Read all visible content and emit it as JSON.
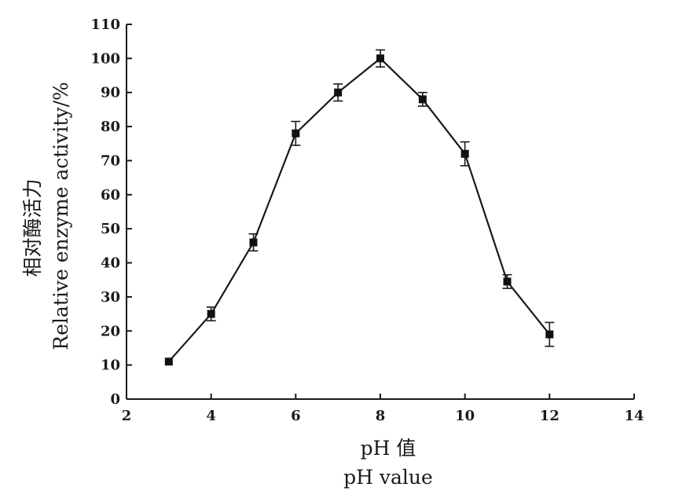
{
  "chart_data": {
    "type": "line",
    "title": "",
    "ylabel_cn": "相对酶活力",
    "ylabel": "Relative  enzyme  activity/%",
    "xlabel_cn": "pH 值",
    "xlabel": "pH  value",
    "xlim": [
      2,
      14
    ],
    "ylim": [
      0,
      110
    ],
    "xticks": [
      "2",
      "4",
      "6",
      "8",
      "10",
      "12",
      "14"
    ],
    "yticks": [
      "0",
      "10",
      "20",
      "30",
      "40",
      "50",
      "60",
      "70",
      "80",
      "90",
      "100",
      "110"
    ],
    "series": [
      {
        "x": [
          3,
          4,
          5,
          6,
          7,
          8,
          9,
          10,
          11,
          12
        ],
        "values": [
          11,
          25,
          46,
          78,
          90,
          100,
          88,
          72,
          34.5,
          19
        ],
        "error": [
          0,
          2,
          2.5,
          3.5,
          2.5,
          2.5,
          2,
          3.5,
          2,
          3.5
        ]
      }
    ],
    "grid": false,
    "marker": "square",
    "color": "#111111"
  }
}
